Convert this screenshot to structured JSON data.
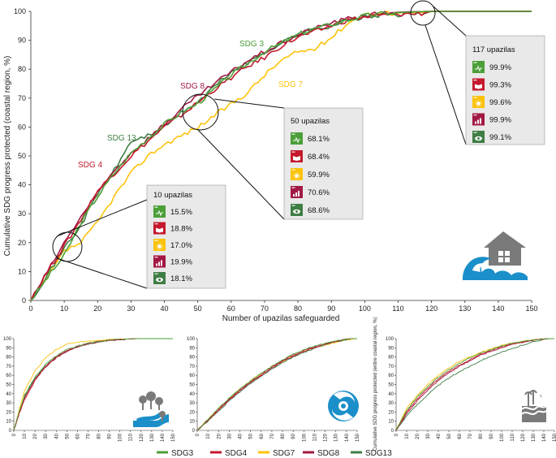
{
  "colors": {
    "SDG3": "#4c9f38",
    "SDG4": "#c5192d",
    "SDG7": "#fcc30b",
    "SDG8": "#a21942",
    "SDG13": "#3f7e44",
    "callout_bg": "#e9e9e9",
    "icon_blue": "#1b8fc9",
    "icon_gray": "#7a7a7a"
  },
  "icons": {
    "main": "flood-house-icon",
    "small1": "river-trees-icon",
    "small2": "cyclone-icon",
    "small3": "storm-surge-icon",
    "tiles": [
      "sdg3-heartbeat-icon",
      "sdg4-book-icon",
      "sdg7-sun-icon",
      "sdg8-growth-chart-icon",
      "sdg13-eye-globe-icon"
    ]
  },
  "main_chart": {
    "xlabel": "Number of upazilas safeguarded",
    "ylabel": "Cumulative SDG progress protected (coastal region, %)",
    "x_ticks": [
      "0",
      "10",
      "20",
      "30",
      "40",
      "50",
      "60",
      "70",
      "80",
      "90",
      "100",
      "110",
      "120",
      "130",
      "140",
      "150"
    ],
    "y_ticks": [
      "0",
      "10",
      "20",
      "30",
      "40",
      "50",
      "60",
      "70",
      "80",
      "90",
      "100"
    ],
    "series_labels": {
      "SDG3": "SDG 3",
      "SDG4": "SDG 4",
      "SDG7": "SDG 7",
      "SDG8": "SDG 8",
      "SDG13": "SDG 13"
    },
    "callouts": [
      {
        "title": "10 upazilas",
        "values": [
          "15.5%",
          "18.8%",
          "17.0%",
          "19.9%",
          "18.1%"
        ]
      },
      {
        "title": "50 upazilas",
        "values": [
          "68.1%",
          "68.4%",
          "59.9%",
          "70.6%",
          "68.6%"
        ]
      },
      {
        "title": "117 upazilas",
        "values": [
          "99.9%",
          "99.3%",
          "99.6%",
          "99.9%",
          "99.1%"
        ]
      }
    ]
  },
  "small_charts": {
    "x_ticks": [
      "0",
      "10",
      "20",
      "30",
      "40",
      "50",
      "60",
      "70",
      "80",
      "90",
      "100",
      "110",
      "120",
      "130",
      "140",
      "150"
    ],
    "y_ticks": [
      "0",
      "10",
      "20",
      "30",
      "40",
      "50",
      "60",
      "70",
      "80",
      "90",
      "100"
    ],
    "third_ylabel": "Cumulative SDG progress protected (entire coastal region, %)"
  },
  "legend": [
    {
      "key": "SDG3",
      "label": "SDG3"
    },
    {
      "key": "SDG4",
      "label": "SDG4"
    },
    {
      "key": "SDG7",
      "label": "SDG7"
    },
    {
      "key": "SDG8",
      "label": "SDG8"
    },
    {
      "key": "SDG13",
      "label": "SDG13"
    }
  ],
  "chart_data": [
    {
      "type": "line",
      "xlabel": "Number of upazilas safeguarded",
      "ylabel": "Cumulative SDG progress protected (coastal region, %)",
      "xlim": [
        0,
        150
      ],
      "ylim": [
        0,
        100
      ],
      "x": [
        0,
        5,
        10,
        15,
        20,
        25,
        30,
        35,
        40,
        45,
        50,
        55,
        60,
        65,
        70,
        75,
        80,
        85,
        90,
        95,
        100,
        105,
        110,
        115,
        117,
        120,
        125,
        130,
        140,
        150
      ],
      "series": [
        {
          "name": "SDG 3",
          "values": [
            0,
            8,
            15.5,
            27,
            36,
            44,
            51,
            56,
            61,
            65,
            68.1,
            73,
            78,
            82,
            86,
            89,
            92,
            94,
            95.5,
            97,
            98.5,
            99.2,
            99.6,
            99.8,
            99.9,
            100,
            100,
            100,
            100,
            100
          ]
        },
        {
          "name": "SDG 4",
          "values": [
            0,
            10,
            18.8,
            28,
            38,
            44,
            50,
            55,
            60,
            64,
            68.4,
            73,
            77,
            81,
            84,
            88,
            91,
            93,
            95,
            97,
            98,
            98.6,
            99,
            99.2,
            99.3,
            100,
            100,
            100,
            100,
            100
          ]
        },
        {
          "name": "SDG 7",
          "values": [
            0,
            8,
            17,
            20,
            27,
            36,
            44,
            50,
            54,
            57,
            59.9,
            64,
            68,
            72,
            78,
            83,
            86,
            87,
            91,
            96,
            99,
            99.3,
            99.5,
            99.6,
            99.6,
            100,
            100,
            100,
            100,
            100
          ]
        },
        {
          "name": "SDG 8",
          "values": [
            0,
            10,
            19.9,
            29,
            37,
            45,
            51,
            56,
            61,
            66,
            70.6,
            75,
            79,
            83,
            86,
            89,
            92,
            94,
            96,
            97.5,
            98.5,
            99.3,
            99.7,
            99.9,
            99.9,
            100,
            100,
            100,
            100,
            100
          ]
        },
        {
          "name": "SDG 13",
          "values": [
            0,
            9,
            18.1,
            26,
            37,
            45,
            55,
            57,
            60,
            65,
            68.6,
            74,
            79,
            82,
            86,
            89,
            92,
            94,
            95,
            97,
            98,
            98.5,
            98.9,
            99.0,
            99.1,
            100,
            100,
            100,
            100,
            100
          ]
        }
      ]
    },
    {
      "type": "line",
      "xlim": [
        0,
        150
      ],
      "ylim": [
        0,
        100
      ],
      "x": [
        0,
        5,
        10,
        20,
        30,
        40,
        50,
        60,
        70,
        80,
        90,
        100,
        110,
        120,
        130,
        140,
        150
      ],
      "series": [
        {
          "name": "SDG3",
          "values": [
            0,
            20,
            38,
            58,
            72,
            81,
            88,
            92,
            95,
            97,
            98.5,
            99.3,
            99.8,
            100,
            100,
            100,
            100
          ]
        },
        {
          "name": "SDG4",
          "values": [
            0,
            18,
            33,
            54,
            70,
            80,
            87,
            92,
            95,
            97,
            98.5,
            99.3,
            99.8,
            100,
            100,
            100,
            100
          ]
        },
        {
          "name": "SDG7",
          "values": [
            0,
            22,
            43,
            65,
            79,
            88,
            94,
            96,
            97,
            98,
            99,
            99.5,
            99.8,
            100,
            100,
            100,
            100
          ]
        },
        {
          "name": "SDG8",
          "values": [
            0,
            18,
            35,
            56,
            69,
            79,
            86,
            91,
            94,
            96.5,
            98,
            99,
            99.7,
            100,
            100,
            100,
            100
          ]
        },
        {
          "name": "SDG13",
          "values": [
            0,
            20,
            37,
            57,
            70,
            80,
            87,
            91,
            94,
            96.5,
            98,
            99,
            99.7,
            100,
            100,
            100,
            100
          ]
        }
      ]
    },
    {
      "type": "line",
      "xlim": [
        0,
        150
      ],
      "ylim": [
        0,
        100
      ],
      "x": [
        0,
        10,
        20,
        30,
        40,
        50,
        60,
        70,
        80,
        90,
        100,
        110,
        120,
        130,
        140,
        145,
        150
      ],
      "series": [
        {
          "name": "SDG3",
          "values": [
            0,
            12,
            24,
            35,
            45,
            54,
            62,
            70,
            77,
            83,
            88,
            92,
            95,
            97.5,
            99.5,
            100,
            100
          ]
        },
        {
          "name": "SDG4",
          "values": [
            0,
            11,
            23,
            34,
            44,
            53,
            61,
            69,
            76,
            82,
            87,
            91,
            94.5,
            97,
            99.3,
            100,
            100
          ]
        },
        {
          "name": "SDG7",
          "values": [
            0,
            12,
            24,
            35,
            45,
            54,
            62,
            69,
            75,
            81,
            86,
            90,
            93,
            96,
            98.5,
            99.5,
            100
          ]
        },
        {
          "name": "SDG8",
          "values": [
            0,
            11,
            22,
            33,
            43,
            52,
            60,
            68,
            75,
            81,
            86,
            90,
            94,
            97,
            99.2,
            100,
            100
          ]
        },
        {
          "name": "SDG13",
          "values": [
            0,
            10,
            21,
            32,
            42,
            51,
            59,
            67,
            74,
            80,
            85,
            89.5,
            93.5,
            96.5,
            99,
            100,
            100
          ]
        }
      ]
    },
    {
      "type": "line",
      "xlim": [
        0,
        150
      ],
      "ylim": [
        0,
        100
      ],
      "x": [
        0,
        10,
        20,
        30,
        40,
        50,
        60,
        70,
        80,
        90,
        100,
        110,
        120,
        130,
        140,
        145,
        150
      ],
      "series": [
        {
          "name": "SDG3",
          "values": [
            0,
            22,
            36,
            48,
            58,
            66,
            73,
            79,
            84,
            88,
            92,
            95,
            97,
            98.8,
            99.7,
            100,
            100
          ]
        },
        {
          "name": "SDG4",
          "values": [
            0,
            20,
            34,
            46,
            56,
            64,
            71,
            77,
            83,
            87,
            91,
            94,
            96.5,
            98.5,
            99.6,
            100,
            100
          ]
        },
        {
          "name": "SDG7",
          "values": [
            0,
            24,
            38,
            50,
            60,
            68,
            75,
            80,
            85,
            89,
            92.5,
            95,
            97,
            98.8,
            99.7,
            100,
            100
          ]
        },
        {
          "name": "SDG8",
          "values": [
            0,
            18,
            32,
            44,
            54,
            63,
            70,
            76,
            82,
            86,
            90,
            93.5,
            96,
            98.2,
            99.5,
            100,
            100
          ]
        },
        {
          "name": "SDG13",
          "values": [
            0,
            16,
            28,
            39,
            49,
            57,
            64,
            70,
            76,
            81,
            85,
            89,
            93,
            96.5,
            99.3,
            100,
            100
          ]
        }
      ]
    }
  ]
}
